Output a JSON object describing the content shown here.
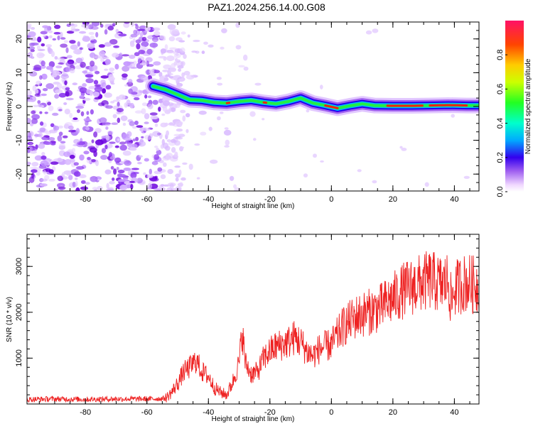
{
  "title": "PAZ1.2024.256.14.00.G08",
  "chart_data": [
    {
      "type": "heatmap",
      "xlabel": "Height of straight line (km)",
      "ylabel": "Frequency (Hz)",
      "xlim": [
        -99,
        48
      ],
      "ylim": [
        -25,
        25
      ],
      "xticks": [
        -80,
        -60,
        -40,
        -20,
        0,
        20,
        40
      ],
      "yticks": [
        -20,
        -10,
        0,
        10,
        20
      ],
      "colorbar": {
        "label": "Normalized spectral amplitude",
        "range": [
          0,
          1
        ],
        "ticks": [
          0.0,
          0.2,
          0.4,
          0.6,
          0.8
        ]
      },
      "ridge": {
        "x": [
          -58,
          -54,
          -50,
          -46,
          -42,
          -38,
          -34,
          -30,
          -26,
          -22,
          -18,
          -14,
          -10,
          -6,
          -2,
          2,
          6,
          10,
          14,
          20,
          26,
          32,
          38,
          44,
          48
        ],
        "frequency": [
          6,
          5,
          3.5,
          2,
          1.8,
          1.2,
          1.0,
          1.5,
          1.8,
          1.2,
          0.8,
          1.5,
          2.5,
          1.0,
          0.3,
          -0.5,
          0.2,
          0.8,
          0.3,
          0.2,
          0.2,
          0.3,
          0.4,
          0.3,
          0.3
        ]
      }
    },
    {
      "type": "line",
      "xlabel": "Height of straight line (km)",
      "ylabel": "SNR (10 * v/v)",
      "xlim": [
        -99,
        48
      ],
      "ylim": [
        0,
        3700
      ],
      "xticks": [
        -80,
        -60,
        -40,
        -20,
        0,
        20,
        40
      ],
      "yticks": [
        1000,
        2000,
        3000
      ],
      "series": [
        {
          "color": "#ee2222",
          "x": [
            -99,
            -90,
            -80,
            -70,
            -60,
            -54,
            -52,
            -50,
            -48,
            -46,
            -44,
            -42,
            -40,
            -38,
            -36,
            -34,
            -32,
            -30,
            -29,
            -28,
            -26,
            -24,
            -22,
            -20,
            -18,
            -16,
            -14,
            -12,
            -10,
            -8,
            -6,
            -4,
            -2,
            0,
            2,
            4,
            6,
            8,
            10,
            12,
            14,
            16,
            18,
            20,
            22,
            24,
            26,
            28,
            30,
            32,
            34,
            36,
            38,
            39,
            40,
            42,
            44,
            46,
            48
          ],
          "values": [
            100,
            110,
            100,
            110,
            110,
            120,
            250,
            450,
            700,
            800,
            950,
            700,
            600,
            350,
            250,
            200,
            500,
            900,
            1600,
            900,
            650,
            700,
            1000,
            1150,
            1250,
            1300,
            1350,
            1450,
            1350,
            1150,
            1050,
            1200,
            1250,
            1300,
            1500,
            1700,
            1800,
            1900,
            1950,
            2000,
            2050,
            2100,
            2200,
            2300,
            2400,
            2500,
            2550,
            2600,
            2650,
            2700,
            2650,
            2600,
            2700,
            2200,
            2500,
            2600,
            2650,
            2600,
            2600
          ]
        }
      ]
    }
  ]
}
